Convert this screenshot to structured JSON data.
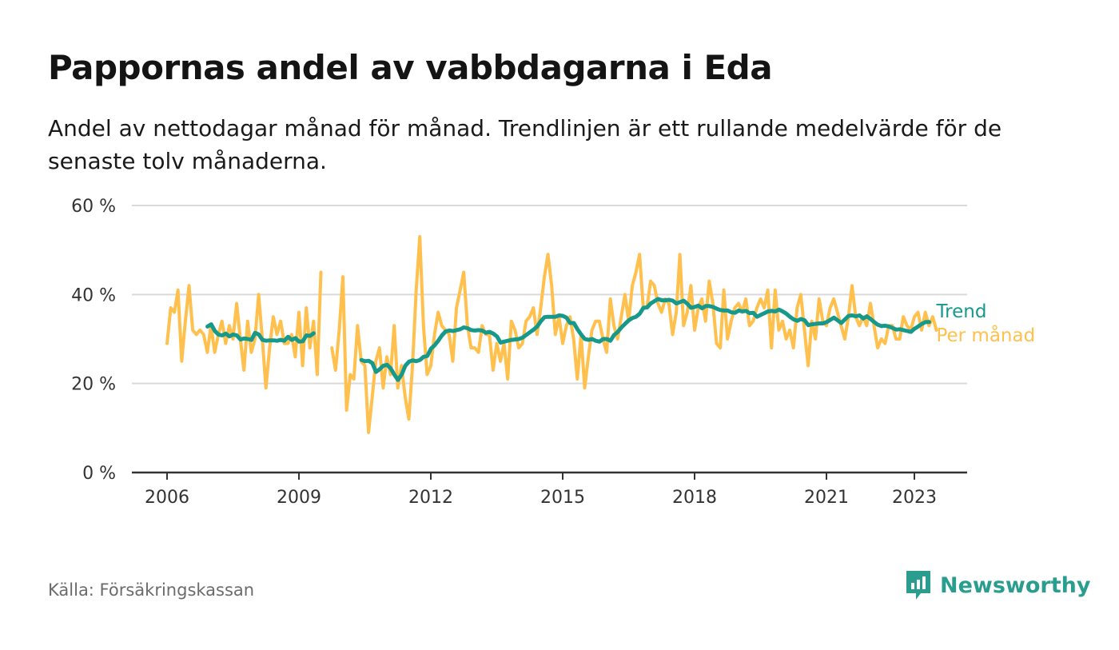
{
  "title": "Pappornas andel av vabbdagarna i Eda",
  "subtitle": "Andel av nettodagar månad för månad. Trendlinjen är ett rullande medelvärde för de senaste tolv månaderna.",
  "source": "Källa: Försäkringskassan",
  "brand": "Newsworthy",
  "colors": {
    "monthly": "#ffc04d",
    "trend": "#16998a",
    "grid": "#d9d9d9",
    "axis": "#333333",
    "brand": "#2a9d8f"
  },
  "chart_data": {
    "type": "line",
    "x_unit": "year",
    "xlim": [
      2005.2,
      2024.2
    ],
    "ylim": [
      0,
      60
    ],
    "y_ticks": [
      0,
      20,
      40,
      60
    ],
    "y_tick_labels": [
      "0 %",
      "20 %",
      "40 %",
      "60 %"
    ],
    "x_ticks": [
      2006,
      2009,
      2012,
      2015,
      2018,
      2021,
      2023
    ],
    "x_tick_labels": [
      "2006",
      "2009",
      "2012",
      "2015",
      "2018",
      "2021",
      "2023"
    ],
    "grid": "horizontal",
    "legend": "end-of-line labels, right",
    "series": [
      {
        "name": "Per månad",
        "color": "#ffc04d",
        "start_year": 2006,
        "step": 0.08333,
        "values": [
          29,
          37,
          36,
          41,
          25,
          34,
          42,
          32,
          31,
          32,
          31,
          27,
          33,
          27,
          31,
          34,
          29,
          33,
          30,
          38,
          30,
          23,
          34,
          27,
          30,
          40,
          30,
          19,
          28,
          35,
          31,
          34,
          29,
          29,
          31,
          26,
          36,
          24,
          37,
          28,
          34,
          22,
          45,
          null,
          null,
          28,
          23,
          32,
          44,
          14,
          22,
          21,
          33,
          25,
          24,
          9,
          17,
          25,
          28,
          19,
          26,
          22,
          33,
          19,
          24,
          17,
          12,
          24,
          41,
          53,
          33,
          22,
          24,
          31,
          36,
          33,
          32,
          31,
          25,
          37,
          41,
          45,
          33,
          28,
          28,
          27,
          33,
          31,
          31,
          23,
          29,
          25,
          29,
          21,
          34,
          32,
          28,
          29,
          34,
          35,
          37,
          31,
          37,
          44,
          49,
          42,
          31,
          35,
          29,
          33,
          35,
          30,
          21,
          31,
          19,
          26,
          32,
          34,
          34,
          30,
          27,
          39,
          33,
          30,
          35,
          40,
          34,
          42,
          45,
          49,
          37,
          37,
          43,
          42,
          38,
          36,
          39,
          38,
          31,
          36,
          49,
          33,
          36,
          42,
          32,
          37,
          39,
          34,
          43,
          38,
          29,
          28,
          41,
          30,
          34,
          37,
          38,
          36,
          39,
          33,
          34,
          37,
          39,
          37,
          41,
          28,
          41,
          32,
          34,
          30,
          32,
          28,
          37,
          40,
          32,
          24,
          34,
          30,
          39,
          34,
          33,
          37,
          39,
          36,
          33,
          30,
          35,
          42,
          35,
          33,
          35,
          33,
          38,
          33,
          28,
          30,
          29,
          33,
          33,
          30,
          30,
          35,
          33,
          32,
          35,
          36,
          32,
          36,
          33,
          35,
          32
        ]
      },
      {
        "name": "Trend",
        "color": "#16998a",
        "start_year": 2006.92,
        "step": 0.08333,
        "values": [
          32.8,
          33.3,
          31.8,
          31.0,
          30.8,
          31.2,
          30.6,
          31.0,
          30.8,
          29.9,
          30.1,
          30.0,
          29.8,
          31.4,
          31.0,
          29.8,
          29.6,
          29.7,
          29.7,
          29.6,
          29.8,
          29.6,
          30.5,
          29.8,
          30.2,
          29.4,
          29.5,
          30.8,
          30.7,
          31.3,
          null,
          null,
          null,
          null,
          null,
          null,
          null,
          null,
          null,
          null,
          null,
          null,
          25.3,
          25.0,
          25.1,
          24.6,
          22.6,
          23.2,
          24.0,
          24.2,
          23.4,
          22.0,
          20.8,
          22.0,
          24.0,
          24.9,
          25.2,
          25.0,
          25.3,
          26.0,
          26.2,
          27.8,
          28.6,
          29.6,
          30.8,
          31.7,
          31.9,
          31.8,
          32.0,
          32.2,
          32.6,
          32.4,
          32.0,
          31.9,
          32.0,
          31.9,
          31.4,
          31.6,
          31.2,
          30.6,
          29.2,
          29.4,
          29.6,
          29.8,
          29.9,
          30.0,
          30.3,
          30.9,
          31.5,
          32.1,
          32.8,
          34.0,
          34.9,
          35.0,
          35.0,
          35.0,
          35.3,
          35.2,
          34.8,
          33.6,
          33.6,
          32.2,
          31.0,
          30.0,
          29.8,
          30.0,
          29.6,
          29.4,
          30.0,
          30.0,
          29.6,
          30.9,
          31.6,
          32.6,
          33.4,
          34.2,
          34.7,
          35.0,
          35.7,
          37.0,
          37.1,
          38.0,
          38.5,
          39.0,
          38.7,
          38.7,
          38.8,
          38.6,
          38.0,
          38.3,
          38.6,
          37.9,
          37.0,
          37.2,
          37.5,
          36.9,
          37.4,
          37.4,
          37.2,
          36.8,
          36.5,
          36.4,
          36.4,
          36.0,
          35.9,
          36.4,
          36.2,
          36.3,
          35.8,
          35.9,
          35.0,
          35.4,
          35.8,
          36.2,
          36.3,
          36.2,
          36.6,
          36.2,
          35.7,
          35.0,
          34.4,
          34.1,
          34.5,
          34.2,
          33.1,
          33.3,
          33.4,
          33.5,
          33.5,
          33.8,
          34.3,
          34.8,
          34.2,
          33.6,
          34.4,
          35.2,
          35.3,
          35.1,
          35.3,
          34.6,
          35.1,
          34.5,
          33.8,
          33.2,
          32.9,
          33.0,
          32.8,
          32.5,
          32.1,
          32.2,
          32.0,
          31.8,
          31.6,
          32.3,
          32.8,
          33.4,
          33.8,
          33.8
        ]
      }
    ]
  }
}
